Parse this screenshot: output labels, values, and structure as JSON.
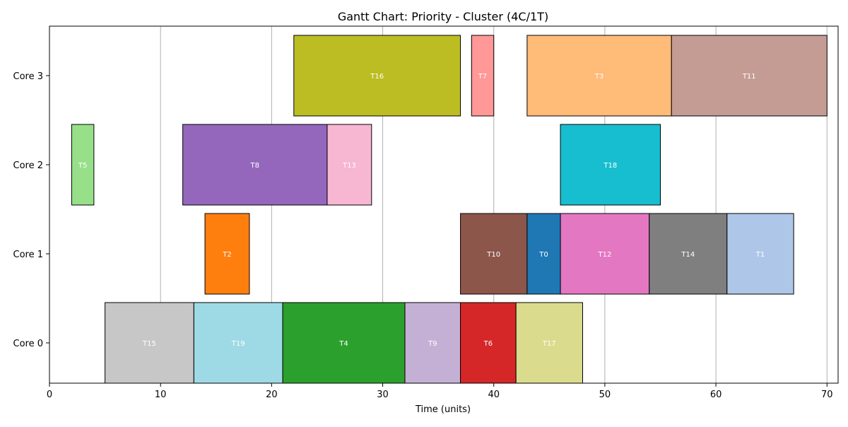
{
  "chart_data": {
    "type": "gantt",
    "title": "Gantt Chart: Priority - Cluster (4C/1T)",
    "xlabel": "Time (units)",
    "ylabel": "",
    "xlim": [
      0,
      71
    ],
    "x_ticks": [
      0,
      10,
      20,
      30,
      40,
      50,
      60,
      70
    ],
    "cores": [
      "Core 0",
      "Core 1",
      "Core 2",
      "Core 3"
    ],
    "grid": "vertical",
    "tasks": [
      {
        "name": "T15",
        "core": "Core 0",
        "start": 5,
        "end": 13,
        "color": "#c7c7c7"
      },
      {
        "name": "T19",
        "core": "Core 0",
        "start": 13,
        "end": 21,
        "color": "#9edae5"
      },
      {
        "name": "T4",
        "core": "Core 0",
        "start": 21,
        "end": 32,
        "color": "#2ca02c"
      },
      {
        "name": "T9",
        "core": "Core 0",
        "start": 32,
        "end": 37,
        "color": "#c5b0d5"
      },
      {
        "name": "T6",
        "core": "Core 0",
        "start": 37,
        "end": 42,
        "color": "#d62728"
      },
      {
        "name": "T17",
        "core": "Core 0",
        "start": 42,
        "end": 48,
        "color": "#dbdb8d"
      },
      {
        "name": "T2",
        "core": "Core 1",
        "start": 14,
        "end": 18,
        "color": "#ff7f0e"
      },
      {
        "name": "T10",
        "core": "Core 1",
        "start": 37,
        "end": 43,
        "color": "#8c564b"
      },
      {
        "name": "T0",
        "core": "Core 1",
        "start": 43,
        "end": 46,
        "color": "#1f77b4"
      },
      {
        "name": "T12",
        "core": "Core 1",
        "start": 46,
        "end": 54,
        "color": "#e377c2"
      },
      {
        "name": "T14",
        "core": "Core 1",
        "start": 54,
        "end": 61,
        "color": "#7f7f7f"
      },
      {
        "name": "T1",
        "core": "Core 1",
        "start": 61,
        "end": 67,
        "color": "#aec7e8"
      },
      {
        "name": "T5",
        "core": "Core 2",
        "start": 2,
        "end": 4,
        "color": "#98df8a"
      },
      {
        "name": "T8",
        "core": "Core 2",
        "start": 12,
        "end": 25,
        "color": "#9467bd"
      },
      {
        "name": "T13",
        "core": "Core 2",
        "start": 25,
        "end": 29,
        "color": "#f7b6d2"
      },
      {
        "name": "T18",
        "core": "Core 2",
        "start": 46,
        "end": 55,
        "color": "#17becf"
      },
      {
        "name": "T16",
        "core": "Core 3",
        "start": 22,
        "end": 37,
        "color": "#bcbd22"
      },
      {
        "name": "T7",
        "core": "Core 3",
        "start": 38,
        "end": 40,
        "color": "#ff9896"
      },
      {
        "name": "T3",
        "core": "Core 3",
        "start": 43,
        "end": 56,
        "color": "#ffbb78"
      },
      {
        "name": "T11",
        "core": "Core 3",
        "start": 56,
        "end": 70,
        "color": "#c49c94"
      }
    ]
  }
}
